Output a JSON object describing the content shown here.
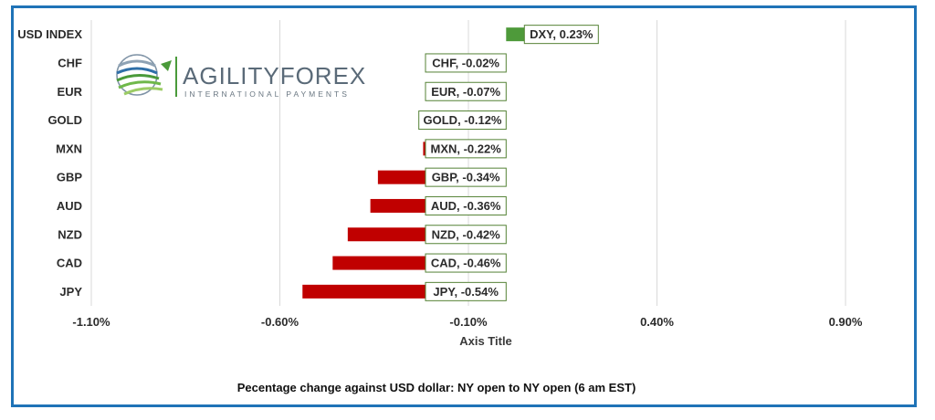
{
  "chart_data": {
    "type": "bar",
    "orientation": "horizontal",
    "categories": [
      "USD INDEX",
      "CHF",
      "EUR",
      "GOLD",
      "MXN",
      "GBP",
      "AUD",
      "NZD",
      "CAD",
      "JPY"
    ],
    "values": [
      0.23,
      -0.02,
      -0.07,
      -0.12,
      -0.22,
      -0.34,
      -0.36,
      -0.42,
      -0.46,
      -0.54
    ],
    "data_labels": [
      "DXY, 0.23%",
      "CHF, -0.02%",
      "EUR, -0.07%",
      "GOLD, -0.12%",
      "MXN, -0.22%",
      "GBP, -0.34%",
      "AUD, -0.36%",
      "NZD, -0.42%",
      "CAD, -0.46%",
      "JPY, -0.54%"
    ],
    "xlim": [
      -1.1,
      1.4
    ],
    "x_ticks": [
      -1.1,
      -0.6,
      -0.1,
      0.4,
      0.9
    ],
    "x_tick_labels": [
      "-1.10%",
      "-0.60%",
      "-0.10%",
      "0.40%",
      "0.90%"
    ],
    "xlabel": "Axis Title",
    "caption": "Pecentage change against USD dollar:  NY open to NY open  (6 am EST)",
    "grid": true,
    "colors": {
      "positive": "#4e9a3a",
      "negative": "#c00000",
      "grid": "#d9d9d9",
      "label_border": "#548235",
      "frame": "#1f73b7"
    }
  },
  "logo": {
    "brand": "AGILITYFOREX",
    "tagline": "INTERNATIONAL PAYMENTS"
  }
}
